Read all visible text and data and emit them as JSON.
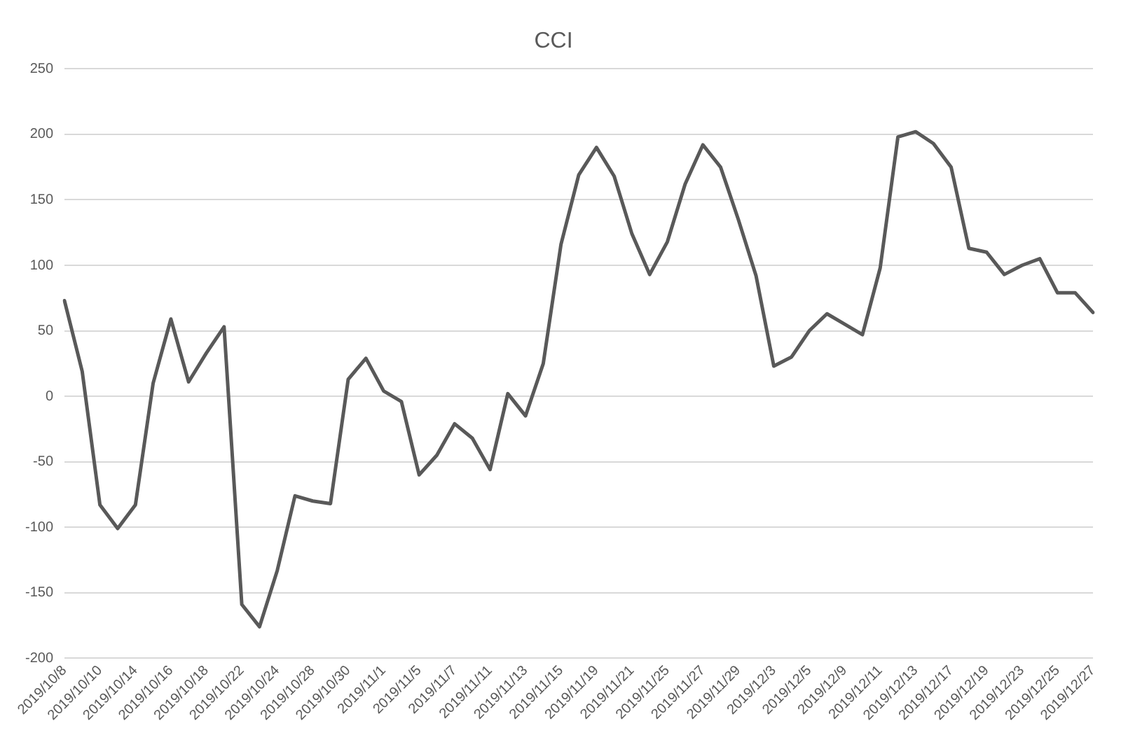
{
  "chart_data": {
    "type": "line",
    "title": "CCI",
    "categories": [
      "2019/10/8",
      null,
      "2019/10/10",
      null,
      "2019/10/14",
      null,
      "2019/10/16",
      null,
      "2019/10/18",
      null,
      "2019/10/22",
      null,
      "2019/10/24",
      null,
      "2019/10/28",
      null,
      "2019/10/30",
      null,
      "2019/11/1",
      null,
      "2019/11/5",
      null,
      "2019/11/7",
      null,
      "2019/11/11",
      null,
      "2019/11/13",
      null,
      "2019/11/15",
      null,
      "2019/11/19",
      null,
      "2019/11/21",
      null,
      "2019/11/25",
      null,
      "2019/11/27",
      null,
      "2019/11/29",
      null,
      "2019/12/3",
      null,
      "2019/12/5",
      null,
      "2019/12/9",
      null,
      "2019/12/11",
      null,
      "2019/12/13",
      null,
      "2019/12/17",
      null,
      "2019/12/19",
      null,
      "2019/12/23",
      null,
      "2019/12/25",
      null,
      "2019/12/27"
    ],
    "series": [
      {
        "color": "#595959",
        "values": [
          73,
          19,
          -83,
          -101,
          -83,
          10,
          59,
          11,
          33,
          53,
          -159,
          -176,
          -133,
          -76,
          -80,
          -82,
          13,
          29,
          4,
          -4,
          -60,
          -45,
          -21,
          -32,
          -56,
          2,
          -15,
          25,
          116,
          169,
          190,
          168,
          124,
          93,
          118,
          162,
          192,
          175,
          135,
          92,
          23,
          30,
          50,
          63,
          55,
          47,
          98,
          198,
          202,
          193,
          175,
          113,
          110,
          93,
          100,
          105,
          79,
          79,
          64
        ]
      }
    ],
    "ylim": [
      -200,
      250
    ],
    "yticks": [
      -200,
      -150,
      -100,
      -50,
      0,
      50,
      100,
      150,
      200,
      250
    ],
    "grid": "y",
    "legend": false,
    "marker": "none",
    "line_style": "solid"
  }
}
